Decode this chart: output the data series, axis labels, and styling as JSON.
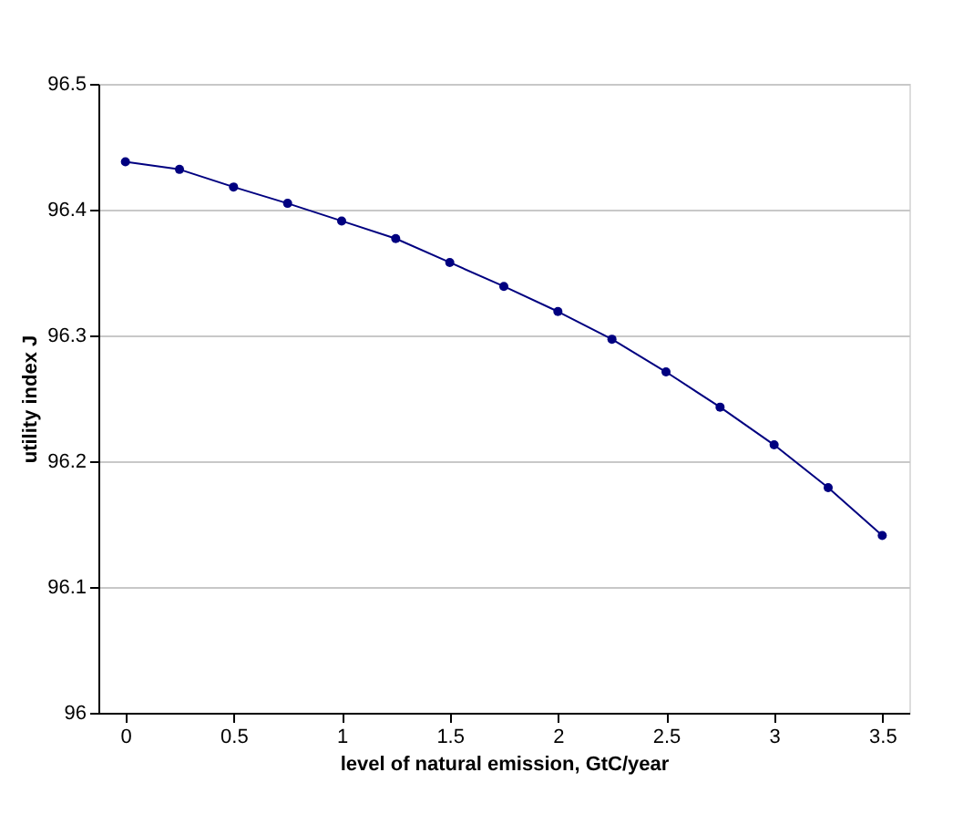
{
  "chart_data": {
    "type": "line",
    "xlabel": "level of natural emission, GtC/year",
    "ylabel": "utility index J",
    "x": [
      0,
      0.25,
      0.5,
      0.75,
      1,
      1.25,
      1.5,
      1.75,
      2,
      2.25,
      2.5,
      2.75,
      3,
      3.25,
      3.5
    ],
    "series": [
      {
        "color": "#000080",
        "values": [
          96.438,
          96.432,
          96.418,
          96.405,
          96.391,
          96.377,
          96.358,
          96.339,
          96.319,
          96.297,
          96.271,
          96.243,
          96.213,
          96.179,
          96.141
        ]
      }
    ],
    "xlim": [
      -0.125,
      3.625
    ],
    "xticks": [
      0,
      0.5,
      1,
      1.5,
      2,
      2.5,
      3,
      3.5
    ],
    "ylim": [
      96,
      96.5
    ],
    "yticks": [
      96,
      96.1,
      96.2,
      96.3,
      96.4,
      96.5
    ],
    "grid": "y",
    "marker": "circle",
    "line_style": "solid"
  }
}
